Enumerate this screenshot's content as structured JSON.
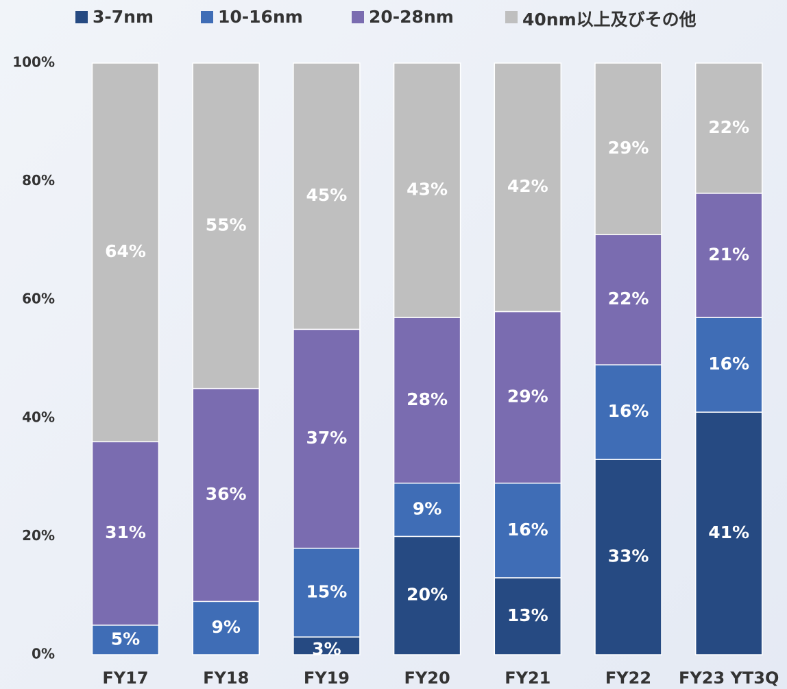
{
  "chart_data": {
    "type": "stacked_bar",
    "categories": [
      "FY17",
      "FY18",
      "FY19",
      "FY20",
      "FY21",
      "FY22",
      "FY23 YT3Q"
    ],
    "series": [
      {
        "name": "3-7nm",
        "color": "#264a82",
        "values": [
          0,
          0,
          3,
          20,
          13,
          33,
          41
        ],
        "value_labels": [
          null,
          null,
          "3%",
          "20%",
          "13%",
          "33%",
          "41%"
        ]
      },
      {
        "name": "10-16nm",
        "color": "#3f6db6",
        "values": [
          5,
          9,
          15,
          9,
          16,
          16,
          16
        ],
        "value_labels": [
          "5%",
          "9%",
          "15%",
          "9%",
          "16%",
          "16%",
          "16%"
        ]
      },
      {
        "name": "20-28nm",
        "color": "#7a6cb0",
        "values": [
          31,
          36,
          37,
          28,
          29,
          22,
          21
        ],
        "value_labels": [
          "31%",
          "36%",
          "37%",
          "28%",
          "29%",
          "22%",
          "21%"
        ]
      },
      {
        "name": "40nm以上及びその他",
        "color": "#bfbfbf",
        "values": [
          64,
          55,
          45,
          43,
          42,
          29,
          22
        ],
        "value_labels": [
          "64%",
          "55%",
          "45%",
          "43%",
          "42%",
          "29%",
          "22%"
        ]
      }
    ],
    "ylim": [
      0,
      100
    ],
    "yticks": [
      {
        "value": 0,
        "label": "0%"
      },
      {
        "value": 20,
        "label": "20%"
      },
      {
        "value": 40,
        "label": "40%"
      },
      {
        "value": 60,
        "label": "60%"
      },
      {
        "value": 80,
        "label": "80%"
      },
      {
        "value": 100,
        "label": "100%"
      }
    ],
    "legend": "top"
  }
}
